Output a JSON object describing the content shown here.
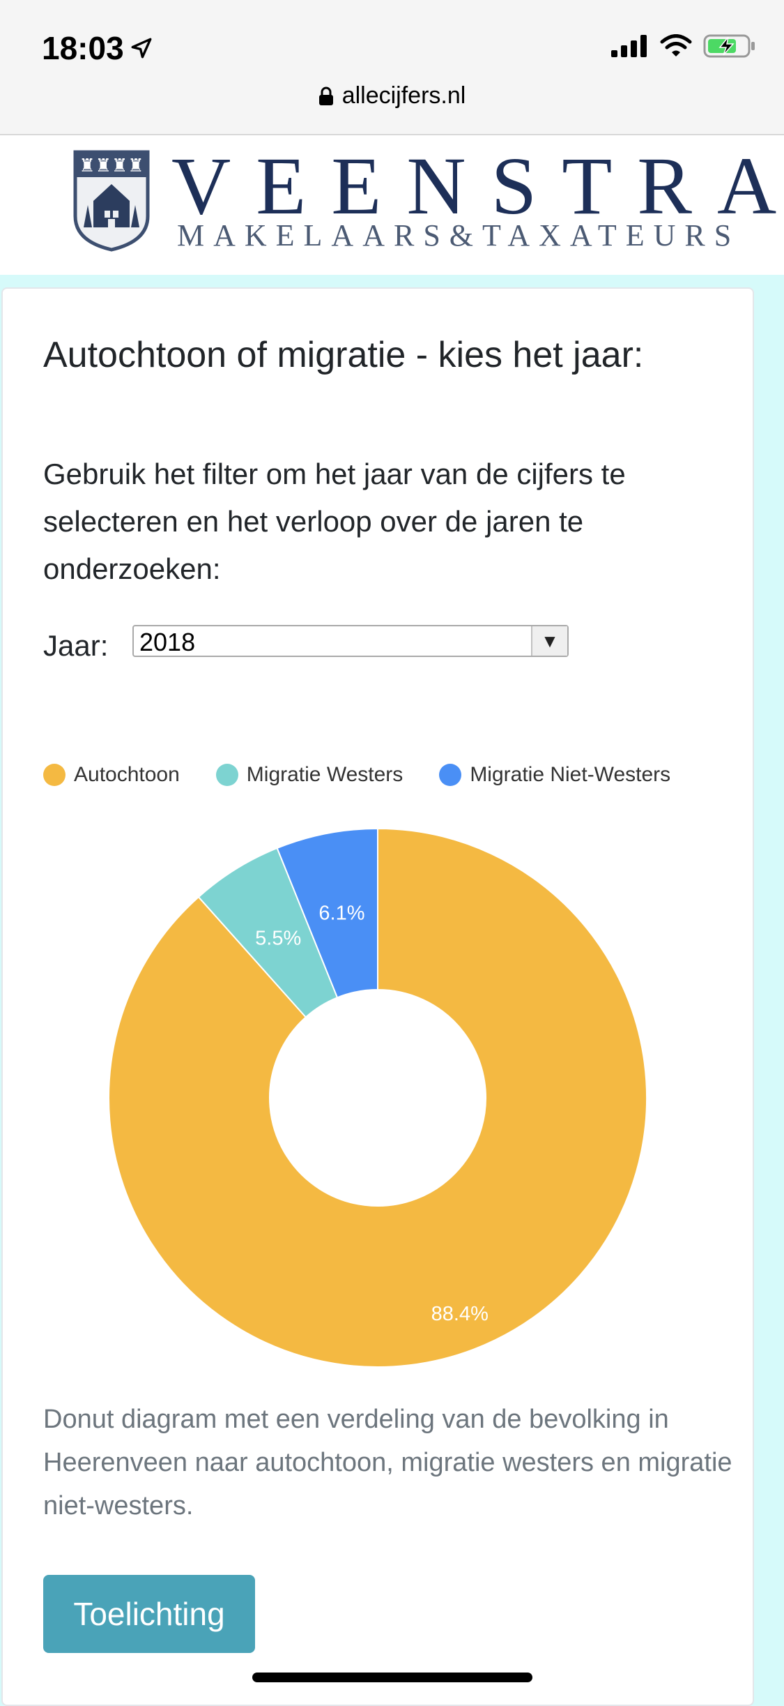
{
  "status_bar": {
    "time": "18:03"
  },
  "browser": {
    "url": "allecijfers.nl"
  },
  "header": {
    "brand_name": "VEENSTRA",
    "brand_sub": "MAKELAARS&TAXATEURS"
  },
  "card": {
    "title": "Autochtoon of migratie - kies het jaar:",
    "intro": "Gebruik het filter om het jaar van de cijfers te selecteren en het verloop over de jaren te onderzoeken:",
    "year_label": "Jaar:",
    "year_select": {
      "value": "2018",
      "arrow": "▼"
    },
    "caption": "Donut diagram met een verdeling van de bevolking in Heerenveen naar autochtoon, migratie westers en migratie niet-westers.",
    "button_label": "Toelichting"
  },
  "chart_data": {
    "type": "pie",
    "legend_position": "top",
    "slices": [
      {
        "name": "Autochtoon",
        "value": 88.4,
        "label": "88.4%",
        "color": "#f4b942"
      },
      {
        "name": "Migratie Westers",
        "value": 5.5,
        "label": "5.5%",
        "color": "#7dd3d1"
      },
      {
        "name": "Migratie Niet-Westers",
        "value": 6.1,
        "label": "6.1%",
        "color": "#4a8ff5"
      }
    ]
  }
}
